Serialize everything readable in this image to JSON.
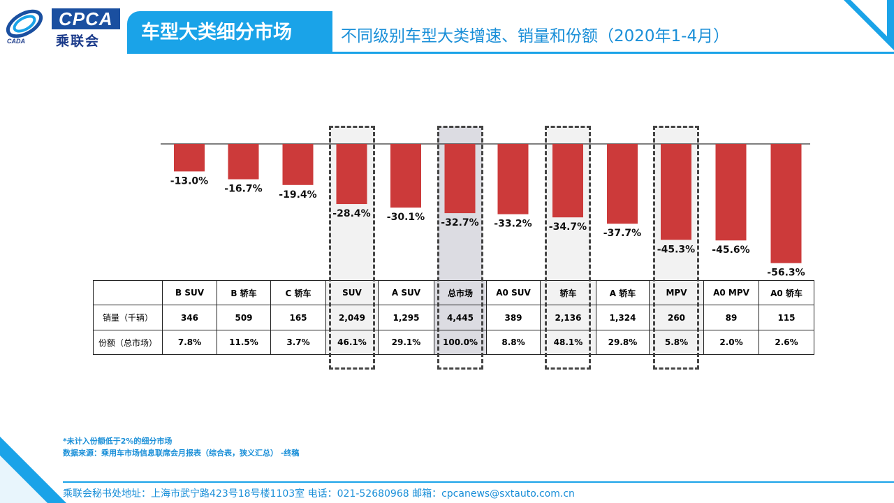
{
  "logo": {
    "cpca": "CPCA",
    "cn": "乘联会",
    "sub": "CADA"
  },
  "header": {
    "title": "车型大类细分市场",
    "subtitle": "不同级别车型大类增速、销量和份额（2020年1-4月）"
  },
  "colors": {
    "bar": "#cc3a3a",
    "accent": "#1aa3e8",
    "highlight": "#f2f2f2",
    "highlight_total": "#dcdce2"
  },
  "chart_data": {
    "type": "bar",
    "categories": [
      "B SUV",
      "B 轿车",
      "C 轿车",
      "SUV",
      "A SUV",
      "总市场",
      "A0 SUV",
      "轿车",
      "A 轿车",
      "MPV",
      "A0 MPV",
      "A0 轿车"
    ],
    "values": [
      -13.0,
      -16.7,
      -19.4,
      -28.4,
      -30.1,
      -32.7,
      -33.2,
      -34.7,
      -37.7,
      -45.3,
      -45.6,
      -56.3
    ],
    "data_labels": [
      "-13.0%",
      "-16.7%",
      "-19.4%",
      "-28.4%",
      "-30.1%",
      "-32.7%",
      "-33.2%",
      "-34.7%",
      "-37.7%",
      "-45.3%",
      "-45.6%",
      "-56.3%"
    ],
    "title": "",
    "ylabel": "",
    "ylim": [
      -60,
      0
    ],
    "grid": false,
    "highlighted": [
      "SUV",
      "总市场",
      "轿车",
      "MPV"
    ]
  },
  "table": {
    "header_blank": "",
    "rows": [
      {
        "label": "销量（千辆）",
        "values": [
          "346",
          "509",
          "165",
          "2,049",
          "1,295",
          "4,445",
          "389",
          "2,136",
          "1,324",
          "260",
          "89",
          "115"
        ]
      },
      {
        "label": "份额（总市场）",
        "values": [
          "7.8%",
          "11.5%",
          "3.7%",
          "46.1%",
          "29.1%",
          "100.0%",
          "8.8%",
          "48.1%",
          "29.8%",
          "5.8%",
          "2.0%",
          "2.6%"
        ]
      }
    ]
  },
  "notes": {
    "line1": "*未计入份额低于2%的细分市场",
    "line2": "数据来源：乘用车市场信息联席会月报表（综合表，狭义汇总） -终稿"
  },
  "footer": {
    "text": "乘联会秘书处地址：上海市武宁路423号18号楼1103室  电话：021-52680968   邮箱：cpcanews@sxtauto.com.cn"
  }
}
